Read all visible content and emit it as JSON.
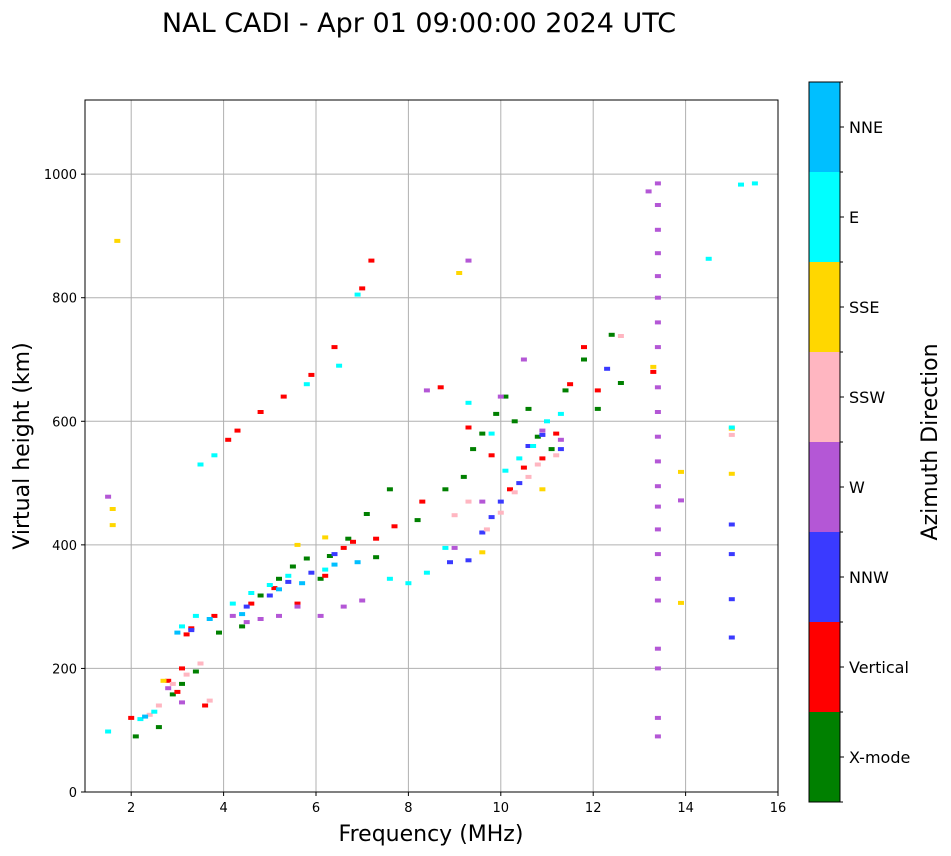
{
  "chart_data": {
    "type": "scatter",
    "title": "NAL CADI - Apr 01 09:00:00 2024 UTC",
    "xlabel": "Frequency (MHz)",
    "ylabel": "Virtual height (km)",
    "xlim": [
      1,
      16
    ],
    "ylim": [
      0,
      1120
    ],
    "xticks": [
      2,
      4,
      6,
      8,
      10,
      12,
      14,
      16
    ],
    "yticks": [
      0,
      200,
      400,
      600,
      800,
      1000
    ],
    "grid": true,
    "colorbar": {
      "label": "Azimuth Direction",
      "categories": [
        "X-mode",
        "Vertical",
        "NNW",
        "W",
        "SSW",
        "SSE",
        "E",
        "NNE"
      ],
      "colors": [
        "#008000",
        "#ff0000",
        "#3a3aff",
        "#b457d6",
        "#ffb6c1",
        "#ffd700",
        "#00ffff",
        "#00bfff"
      ]
    },
    "series": [
      {
        "name": "X-mode",
        "color": "#008000",
        "points": [
          [
            2.1,
            90
          ],
          [
            2.6,
            105
          ],
          [
            2.9,
            158
          ],
          [
            3.1,
            175
          ],
          [
            3.4,
            195
          ],
          [
            3.9,
            258
          ],
          [
            4.4,
            268
          ],
          [
            4.8,
            318
          ],
          [
            5.2,
            345
          ],
          [
            5.5,
            365
          ],
          [
            5.8,
            378
          ],
          [
            6.1,
            345
          ],
          [
            6.3,
            382
          ],
          [
            6.7,
            410
          ],
          [
            7.1,
            450
          ],
          [
            7.3,
            380
          ],
          [
            7.6,
            490
          ],
          [
            8.2,
            440
          ],
          [
            8.8,
            490
          ],
          [
            9.2,
            510
          ],
          [
            9.4,
            555
          ],
          [
            9.6,
            580
          ],
          [
            9.9,
            612
          ],
          [
            10.1,
            640
          ],
          [
            10.3,
            600
          ],
          [
            10.6,
            620
          ],
          [
            10.8,
            575
          ],
          [
            11.1,
            555
          ],
          [
            11.4,
            650
          ],
          [
            11.8,
            700
          ],
          [
            12.1,
            620
          ],
          [
            12.4,
            740
          ],
          [
            12.6,
            662
          ]
        ]
      },
      {
        "name": "Vertical",
        "color": "#ff0000",
        "points": [
          [
            2.0,
            120
          ],
          [
            2.8,
            180
          ],
          [
            3.0,
            162
          ],
          [
            3.1,
            200
          ],
          [
            3.2,
            255
          ],
          [
            3.3,
            265
          ],
          [
            3.6,
            140
          ],
          [
            3.8,
            285
          ],
          [
            4.1,
            570
          ],
          [
            4.3,
            585
          ],
          [
            4.6,
            305
          ],
          [
            4.8,
            615
          ],
          [
            5.1,
            330
          ],
          [
            5.3,
            640
          ],
          [
            5.6,
            305
          ],
          [
            5.9,
            675
          ],
          [
            6.2,
            350
          ],
          [
            6.4,
            720
          ],
          [
            6.6,
            395
          ],
          [
            6.8,
            405
          ],
          [
            7.0,
            815
          ],
          [
            7.2,
            860
          ],
          [
            7.3,
            410
          ],
          [
            7.7,
            430
          ],
          [
            8.3,
            470
          ],
          [
            8.7,
            655
          ],
          [
            9.3,
            590
          ],
          [
            9.8,
            545
          ],
          [
            10.2,
            490
          ],
          [
            10.5,
            525
          ],
          [
            10.9,
            540
          ],
          [
            11.2,
            580
          ],
          [
            11.5,
            660
          ],
          [
            11.8,
            720
          ],
          [
            12.1,
            650
          ],
          [
            13.3,
            680
          ]
        ]
      },
      {
        "name": "NNW",
        "color": "#3a3aff",
        "points": [
          [
            3.3,
            262
          ],
          [
            4.5,
            300
          ],
          [
            5.0,
            318
          ],
          [
            5.4,
            340
          ],
          [
            5.9,
            355
          ],
          [
            6.4,
            385
          ],
          [
            8.9,
            372
          ],
          [
            9.3,
            375
          ],
          [
            9.6,
            420
          ],
          [
            9.8,
            445
          ],
          [
            10.0,
            470
          ],
          [
            10.4,
            500
          ],
          [
            10.6,
            560
          ],
          [
            10.9,
            578
          ],
          [
            11.3,
            555
          ],
          [
            12.3,
            685
          ],
          [
            15.0,
            250
          ],
          [
            15.0,
            312
          ],
          [
            15.0,
            385
          ],
          [
            15.0,
            433
          ]
        ]
      },
      {
        "name": "W",
        "color": "#b457d6",
        "points": [
          [
            1.5,
            478
          ],
          [
            2.8,
            168
          ],
          [
            3.1,
            145
          ],
          [
            4.2,
            285
          ],
          [
            4.5,
            275
          ],
          [
            4.8,
            280
          ],
          [
            5.2,
            285
          ],
          [
            5.6,
            300
          ],
          [
            6.1,
            285
          ],
          [
            6.6,
            300
          ],
          [
            7.0,
            310
          ],
          [
            8.4,
            650
          ],
          [
            9.0,
            395
          ],
          [
            9.3,
            860
          ],
          [
            9.6,
            470
          ],
          [
            10.0,
            640
          ],
          [
            10.5,
            700
          ],
          [
            10.9,
            585
          ],
          [
            11.3,
            570
          ],
          [
            13.4,
            90
          ],
          [
            13.4,
            120
          ],
          [
            13.4,
            200
          ],
          [
            13.4,
            232
          ],
          [
            13.4,
            310
          ],
          [
            13.4,
            345
          ],
          [
            13.4,
            385
          ],
          [
            13.4,
            425
          ],
          [
            13.4,
            462
          ],
          [
            13.4,
            495
          ],
          [
            13.4,
            535
          ],
          [
            13.4,
            575
          ],
          [
            13.4,
            615
          ],
          [
            13.4,
            655
          ],
          [
            13.4,
            720
          ],
          [
            13.4,
            760
          ],
          [
            13.4,
            800
          ],
          [
            13.4,
            835
          ],
          [
            13.4,
            872
          ],
          [
            13.4,
            910
          ],
          [
            13.4,
            950
          ],
          [
            13.4,
            985
          ],
          [
            13.2,
            972
          ],
          [
            13.9,
            472
          ]
        ]
      },
      {
        "name": "SSW",
        "color": "#ffb6c1",
        "points": [
          [
            2.4,
            125
          ],
          [
            2.6,
            140
          ],
          [
            2.9,
            175
          ],
          [
            3.2,
            190
          ],
          [
            3.5,
            208
          ],
          [
            3.7,
            148
          ],
          [
            9.0,
            448
          ],
          [
            9.3,
            470
          ],
          [
            9.7,
            425
          ],
          [
            10.0,
            452
          ],
          [
            10.3,
            485
          ],
          [
            10.6,
            510
          ],
          [
            10.8,
            530
          ],
          [
            11.2,
            545
          ],
          [
            12.6,
            738
          ],
          [
            15.0,
            578
          ]
        ]
      },
      {
        "name": "SSE",
        "color": "#ffd700",
        "points": [
          [
            1.7,
            892
          ],
          [
            1.6,
            458
          ],
          [
            1.6,
            432
          ],
          [
            2.7,
            180
          ],
          [
            5.6,
            400
          ],
          [
            6.2,
            412
          ],
          [
            9.1,
            840
          ],
          [
            9.6,
            388
          ],
          [
            10.9,
            490
          ],
          [
            13.3,
            688
          ],
          [
            13.9,
            518
          ],
          [
            13.9,
            306
          ],
          [
            15.0,
            515
          ],
          [
            15.0,
            588
          ]
        ]
      },
      {
        "name": "E",
        "color": "#00ffff",
        "points": [
          [
            1.5,
            98
          ],
          [
            2.2,
            118
          ],
          [
            2.5,
            130
          ],
          [
            3.1,
            268
          ],
          [
            3.4,
            285
          ],
          [
            3.5,
            530
          ],
          [
            3.8,
            545
          ],
          [
            4.2,
            305
          ],
          [
            4.6,
            322
          ],
          [
            5.0,
            335
          ],
          [
            5.4,
            350
          ],
          [
            5.8,
            660
          ],
          [
            6.2,
            360
          ],
          [
            6.5,
            690
          ],
          [
            6.9,
            805
          ],
          [
            7.6,
            345
          ],
          [
            8.0,
            338
          ],
          [
            8.4,
            355
          ],
          [
            8.8,
            395
          ],
          [
            9.3,
            630
          ],
          [
            9.8,
            580
          ],
          [
            10.1,
            520
          ],
          [
            10.4,
            540
          ],
          [
            10.7,
            560
          ],
          [
            11.0,
            600
          ],
          [
            11.3,
            612
          ],
          [
            14.5,
            863
          ],
          [
            15.2,
            983
          ],
          [
            15.5,
            985
          ],
          [
            15.0,
            590
          ]
        ]
      },
      {
        "name": "NNE",
        "color": "#00bfff",
        "points": [
          [
            2.3,
            122
          ],
          [
            3.0,
            258
          ],
          [
            3.7,
            280
          ],
          [
            4.4,
            288
          ],
          [
            5.2,
            328
          ],
          [
            5.7,
            338
          ],
          [
            6.4,
            368
          ],
          [
            6.9,
            372
          ]
        ]
      }
    ]
  }
}
